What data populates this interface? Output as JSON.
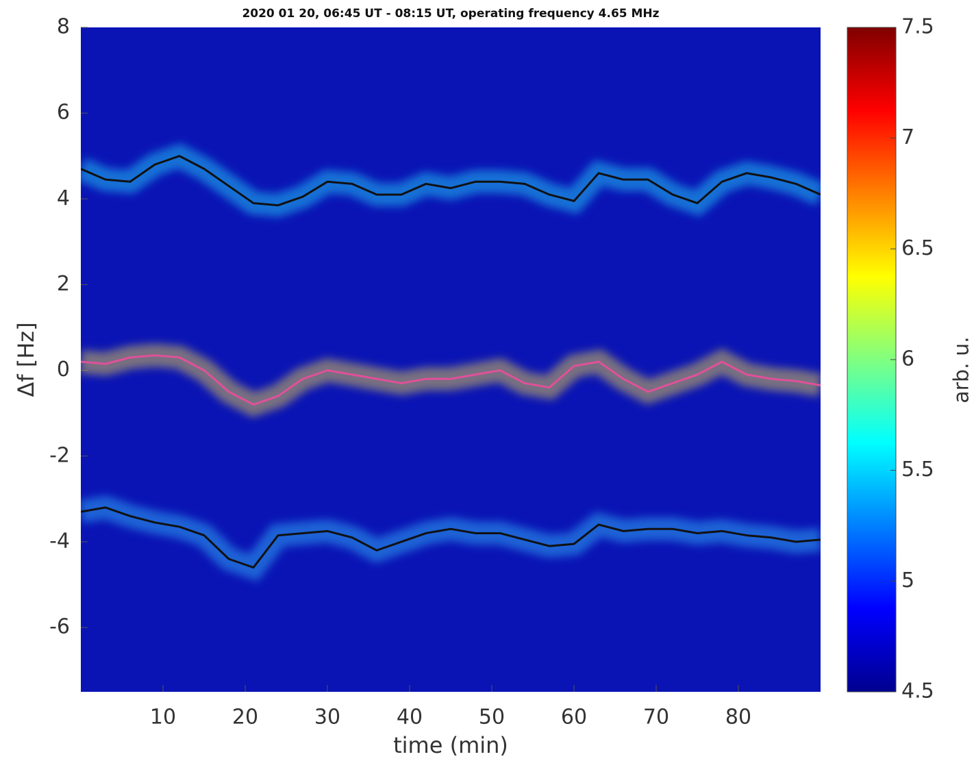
{
  "chart_data": {
    "type": "line",
    "title": "2020 01 20, 06:45 UT - 08:15 UT, operating frequency 4.65 MHz",
    "x_label": "time (min)",
    "y_label": "Δf [Hz]",
    "background": "#0a14b4",
    "x": [
      0,
      3,
      6,
      9,
      12,
      15,
      18,
      21,
      24,
      27,
      30,
      33,
      36,
      39,
      42,
      45,
      48,
      51,
      54,
      57,
      60,
      63,
      66,
      69,
      72,
      75,
      78,
      81,
      84,
      87,
      90
    ],
    "series": [
      {
        "color": "#111111",
        "values": [
          4.7,
          4.45,
          4.4,
          4.8,
          5.0,
          4.7,
          4.3,
          3.9,
          3.85,
          4.05,
          4.4,
          4.35,
          4.1,
          4.1,
          4.35,
          4.25,
          4.4,
          4.4,
          4.35,
          4.1,
          3.95,
          4.6,
          4.45,
          4.45,
          4.1,
          3.9,
          4.4,
          4.6,
          4.5,
          4.35,
          4.1
        ]
      },
      {
        "color": "#e0509a",
        "values": [
          0.2,
          0.15,
          0.3,
          0.35,
          0.3,
          0.0,
          -0.5,
          -0.8,
          -0.6,
          -0.2,
          0.0,
          -0.1,
          -0.2,
          -0.3,
          -0.2,
          -0.2,
          -0.1,
          0.0,
          -0.3,
          -0.4,
          0.1,
          0.2,
          -0.2,
          -0.5,
          -0.3,
          -0.1,
          0.2,
          -0.1,
          -0.2,
          -0.25,
          -0.35
        ]
      },
      {
        "color": "#111111",
        "values": [
          -3.3,
          -3.2,
          -3.4,
          -3.55,
          -3.65,
          -3.85,
          -4.4,
          -4.6,
          -3.85,
          -3.8,
          -3.75,
          -3.9,
          -4.2,
          -4.0,
          -3.8,
          -3.7,
          -3.8,
          -3.8,
          -3.95,
          -4.1,
          -4.05,
          -3.6,
          -3.75,
          -3.7,
          -3.7,
          -3.8,
          -3.75,
          -3.85,
          -3.9,
          -4.0,
          -3.95
        ]
      }
    ],
    "xlim": [
      0,
      90
    ],
    "xticks": [
      10,
      20,
      30,
      40,
      50,
      60,
      70,
      80
    ],
    "ylim": [
      -7.5,
      8
    ],
    "yticks": [
      -6,
      -4,
      -2,
      0,
      2,
      4,
      6,
      8
    ],
    "colorbar": {
      "label": "arb. u.",
      "lim": [
        4.5,
        7.5
      ],
      "ticks": [
        4.5,
        5,
        5.5,
        6,
        6.5,
        7,
        7.5
      ],
      "colors": [
        "#00008f",
        "#0000ff",
        "#0080ff",
        "#00ffff",
        "#80ff80",
        "#ffff00",
        "#ff8000",
        "#ff0000",
        "#800000"
      ]
    }
  }
}
